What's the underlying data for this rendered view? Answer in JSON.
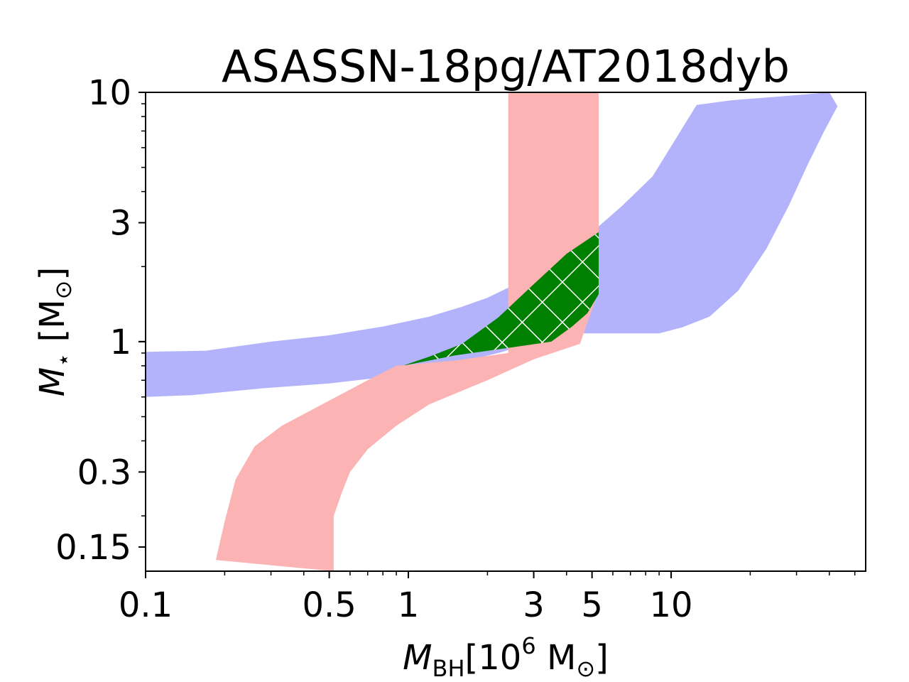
{
  "chart_data": {
    "type": "area",
    "title": "ASASSN-18pg/AT2018dyb",
    "xlabel": {
      "symbol": "M",
      "subscript": "BH",
      "unit_prefix": "[10",
      "exponent": "6",
      "unit": " M",
      "unit_sub": "⊙",
      "close": "]"
    },
    "ylabel": {
      "symbol": "M",
      "subscript": "⋆",
      "unit_prefix": " [M",
      "unit_sub": "⊙",
      "close": "]"
    },
    "xscale": "log",
    "yscale": "log",
    "xlim": [
      0.1,
      55
    ],
    "ylim": [
      0.12,
      10
    ],
    "xticks": [
      {
        "value": 0.1,
        "label": "0.1"
      },
      {
        "value": 0.5,
        "label": "0.5"
      },
      {
        "value": 1,
        "label": "1"
      },
      {
        "value": 3,
        "label": "3"
      },
      {
        "value": 5,
        "label": "5"
      },
      {
        "value": 10,
        "label": "10"
      }
    ],
    "yticks": [
      {
        "value": 0.15,
        "label": "0.15"
      },
      {
        "value": 0.3,
        "label": "0.3"
      },
      {
        "value": 1,
        "label": "1"
      },
      {
        "value": 3,
        "label": "3"
      },
      {
        "value": 10,
        "label": "10"
      }
    ],
    "grid": false,
    "colors": {
      "blue_region": "#b3b3fc",
      "red_region": "#fcb3b3",
      "overlap_region": "#008000",
      "hatch": "#ffffff"
    },
    "regions": [
      {
        "id": "blue",
        "upper": [
          [
            0.1,
            0.91
          ],
          [
            0.17,
            0.92
          ],
          [
            0.3,
            1.0
          ],
          [
            0.5,
            1.06
          ],
          [
            0.8,
            1.15
          ],
          [
            1.2,
            1.26
          ],
          [
            1.6,
            1.38
          ],
          [
            2.0,
            1.5
          ],
          [
            2.5,
            1.68
          ],
          [
            3.5,
            2.1
          ],
          [
            5.0,
            2.75
          ],
          [
            6.5,
            3.5
          ],
          [
            8.5,
            4.6
          ],
          [
            10.5,
            6.6
          ],
          [
            12.5,
            8.9
          ],
          [
            17,
            9.3
          ],
          [
            25,
            9.6
          ],
          [
            40,
            10.0
          ]
        ],
        "lower": [
          [
            0.1,
            0.6
          ],
          [
            0.15,
            0.61
          ],
          [
            0.28,
            0.65
          ],
          [
            0.5,
            0.68
          ],
          [
            0.8,
            0.72
          ],
          [
            1.1,
            0.77
          ],
          [
            1.6,
            0.83
          ],
          [
            2.2,
            0.9
          ],
          [
            2.8,
            0.97
          ],
          [
            4.5,
            1.08
          ],
          [
            7,
            1.08
          ],
          [
            9,
            1.08
          ],
          [
            11,
            1.14
          ],
          [
            14,
            1.26
          ],
          [
            18,
            1.6
          ],
          [
            23,
            2.35
          ],
          [
            28,
            3.5
          ],
          [
            33,
            5.1
          ],
          [
            38,
            6.9
          ],
          [
            43,
            8.8
          ]
        ]
      },
      {
        "id": "red",
        "upper": [
          [
            0.185,
            0.133
          ],
          [
            0.2,
            0.19
          ],
          [
            0.22,
            0.28
          ],
          [
            0.26,
            0.38
          ],
          [
            0.33,
            0.46
          ],
          [
            0.5,
            0.58
          ],
          [
            0.7,
            0.7
          ],
          [
            0.9,
            0.8
          ],
          [
            1.5,
            0.84
          ],
          [
            2.4,
            0.9
          ],
          [
            2.4,
            1.9
          ],
          [
            2.4,
            10.0
          ],
          [
            5.3,
            10.0
          ]
        ],
        "lower": [
          [
            0.52,
            0.12
          ],
          [
            0.52,
            0.2
          ],
          [
            0.56,
            0.25
          ],
          [
            0.6,
            0.3
          ],
          [
            0.7,
            0.37
          ],
          [
            0.9,
            0.46
          ],
          [
            1.2,
            0.56
          ],
          [
            2.0,
            0.7
          ],
          [
            3.0,
            0.85
          ],
          [
            4.5,
            0.98
          ],
          [
            5.3,
            1.6
          ],
          [
            5.3,
            10.0
          ]
        ]
      },
      {
        "id": "overlap",
        "hatched": true,
        "upper": [
          [
            0.95,
            0.8
          ],
          [
            1.2,
            0.87
          ],
          [
            1.6,
            0.98
          ],
          [
            2.2,
            1.25
          ],
          [
            3.0,
            1.7
          ],
          [
            4.0,
            2.25
          ],
          [
            5.3,
            2.75
          ],
          [
            5.3,
            1.55
          ]
        ],
        "lower": [
          [
            0.95,
            0.8
          ],
          [
            1.5,
            0.88
          ],
          [
            2.5,
            0.95
          ],
          [
            3.5,
            1.0
          ],
          [
            4.2,
            1.15
          ],
          [
            4.8,
            1.3
          ],
          [
            5.3,
            1.55
          ]
        ]
      }
    ]
  }
}
